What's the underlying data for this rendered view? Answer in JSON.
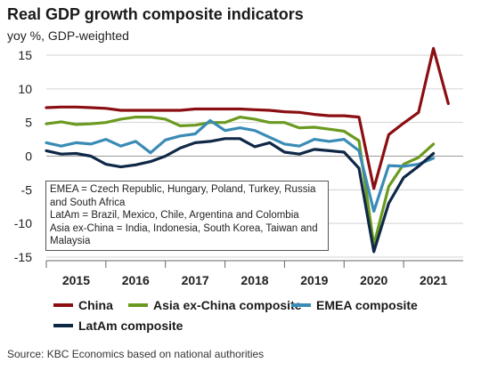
{
  "chart_data": {
    "type": "line",
    "title": "Real GDP growth composite indicators",
    "subtitle": "yoy %, GDP-weighted",
    "ylim": [
      -15,
      15
    ],
    "yticks": [
      15,
      10,
      5,
      0,
      -5,
      -10,
      -15
    ],
    "xlim": [
      2014.5,
      2021.5
    ],
    "xtick_labels": [
      "2015",
      "2016",
      "2017",
      "2018",
      "2019",
      "2020",
      "2021"
    ],
    "gridlines": "horizontal",
    "legend_position": "bottom",
    "legend": [
      "China",
      "Asia ex-China composite",
      "EMEA composite",
      "LatAm composite"
    ],
    "series": [
      {
        "name": "China",
        "color": "#8b0e12",
        "x": [
          2014.5,
          2014.75,
          2015.0,
          2015.25,
          2015.5,
          2015.75,
          2016.0,
          2016.25,
          2016.5,
          2016.75,
          2017.0,
          2017.25,
          2017.5,
          2017.75,
          2018.0,
          2018.25,
          2018.5,
          2018.75,
          2019.0,
          2019.25,
          2019.5,
          2019.75,
          2020.0,
          2020.25,
          2020.5,
          2020.75,
          2021.0,
          2021.25
        ],
        "y": [
          7.2,
          7.3,
          7.3,
          7.2,
          7.1,
          6.8,
          6.8,
          6.8,
          6.8,
          6.8,
          7.0,
          7.0,
          7.0,
          7.0,
          6.9,
          6.8,
          6.6,
          6.5,
          6.2,
          6.0,
          6.0,
          5.8,
          -4.8,
          3.2,
          4.9,
          6.5,
          16.0,
          7.8
        ]
      },
      {
        "name": "Asia ex-China composite",
        "color": "#6a9a1f",
        "x": [
          2014.5,
          2014.75,
          2015.0,
          2015.25,
          2015.5,
          2015.75,
          2016.0,
          2016.25,
          2016.5,
          2016.75,
          2017.0,
          2017.25,
          2017.5,
          2017.75,
          2018.0,
          2018.25,
          2018.5,
          2018.75,
          2019.0,
          2019.25,
          2019.5,
          2019.75,
          2020.0,
          2020.25,
          2020.5,
          2020.75,
          2021.0
        ],
        "y": [
          4.8,
          5.1,
          4.7,
          4.8,
          5.0,
          5.5,
          5.8,
          5.8,
          5.5,
          4.5,
          4.6,
          5.0,
          5.0,
          5.8,
          5.5,
          5.0,
          5.0,
          4.2,
          4.3,
          4.0,
          3.7,
          2.3,
          -13.2,
          -4.5,
          -1.2,
          -0.2,
          1.8
        ]
      },
      {
        "name": "EMEA composite",
        "color": "#3a8bb5",
        "x": [
          2014.5,
          2014.75,
          2015.0,
          2015.25,
          2015.5,
          2015.75,
          2016.0,
          2016.25,
          2016.5,
          2016.75,
          2017.0,
          2017.25,
          2017.5,
          2017.75,
          2018.0,
          2018.25,
          2018.5,
          2018.75,
          2019.0,
          2019.25,
          2019.5,
          2019.75,
          2020.0,
          2020.25,
          2020.5,
          2020.75,
          2021.0
        ],
        "y": [
          2.0,
          1.5,
          2.0,
          1.8,
          2.5,
          1.5,
          2.2,
          0.5,
          2.4,
          3.0,
          3.3,
          5.3,
          3.8,
          4.2,
          3.8,
          2.8,
          1.8,
          1.5,
          2.5,
          2.2,
          2.5,
          0.8,
          -8.2,
          -1.4,
          -1.5,
          -1.2,
          -0.3
        ]
      },
      {
        "name": "LatAm composite",
        "color": "#0f2847",
        "x": [
          2014.5,
          2014.75,
          2015.0,
          2015.25,
          2015.5,
          2015.75,
          2016.0,
          2016.25,
          2016.5,
          2016.75,
          2017.0,
          2017.25,
          2017.5,
          2017.75,
          2018.0,
          2018.25,
          2018.5,
          2018.75,
          2019.0,
          2019.25,
          2019.5,
          2019.75,
          2020.0,
          2020.25,
          2020.5,
          2020.75,
          2021.0
        ],
        "y": [
          0.8,
          0.3,
          0.4,
          0.0,
          -1.2,
          -1.6,
          -1.3,
          -0.8,
          0.0,
          1.2,
          2.0,
          2.2,
          2.6,
          2.6,
          1.4,
          2.0,
          0.6,
          0.3,
          1.0,
          0.8,
          0.6,
          -1.8,
          -14.2,
          -7.0,
          -3.2,
          -1.5,
          0.4
        ]
      }
    ],
    "annotation": [
      "EMEA = Czech Republic, Hungary, Poland, Turkey, Russia and South Africa",
      "LatAm = Brazil, Mexico, Chile, Argentina and Colombia",
      "Asia ex-China = India, Indonesia, South Korea, Taiwan and Malaysia"
    ]
  },
  "source": "Source: KBC Economics based on national authorities"
}
